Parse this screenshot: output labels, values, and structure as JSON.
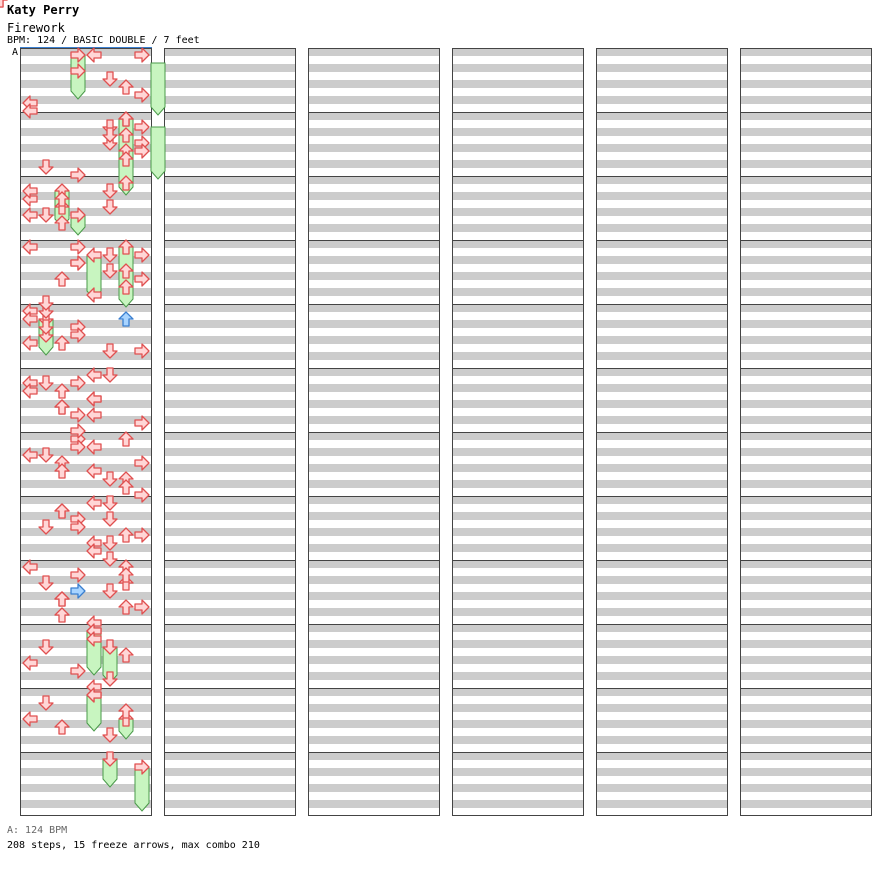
{
  "header": {
    "artist": "Katy Perry",
    "title": "Firework",
    "info": "BPM: 124 / BASIC DOUBLE / 7 feet",
    "bpm_marker": "A"
  },
  "footer": {
    "bpm_legend": "A: 124 BPM",
    "summary": "208 steps, 15 freeze arrows, max combo 210"
  },
  "colors": {
    "stripe": "#cccccc",
    "panel_border": "#444444",
    "arrow_red_fill": "#ffd6d6",
    "arrow_red_stroke": "#e05050",
    "arrow_blue_fill": "#a8d4ff",
    "arrow_blue_stroke": "#3a7fd0",
    "freeze_fill": "#c8f5c0",
    "freeze_stroke": "#4a9a4a"
  },
  "chart_data": {
    "type": "step-chart",
    "style": "BASIC DOUBLE",
    "bpm": 124,
    "columns": 6,
    "measures_per_column": 12,
    "lanes": 8,
    "lane_directions": [
      "left",
      "down",
      "up",
      "right",
      "left",
      "down",
      "up",
      "right"
    ],
    "total_steps": 208,
    "freeze_arrows": 15,
    "max_combo": 210,
    "arrows": [
      [
        5,
        2,
        0
      ],
      [
        0,
        0,
        4
      ],
      [
        1,
        2,
        7
      ],
      [
        1,
        4,
        6
      ],
      [
        1,
        6,
        5
      ],
      [
        1,
        8,
        6
      ],
      [
        2,
        2,
        5
      ],
      [
        2,
        4,
        0
      ],
      [
        2,
        6,
        2
      ],
      [
        2,
        8,
        1
      ],
      [
        2,
        10,
        2
      ],
      [
        3,
        0,
        0
      ],
      [
        3,
        2,
        5
      ],
      [
        3,
        4,
        3
      ],
      [
        3,
        6,
        5
      ],
      [
        3,
        8,
        7
      ],
      [
        4,
        0,
        1
      ],
      [
        4,
        2,
        6
      ],
      [
        4,
        4,
        3
      ],
      [
        4,
        6,
        1
      ],
      [
        4,
        8,
        2
      ],
      [
        4,
        10,
        7
      ],
      [
        5,
        0,
        5
      ],
      [
        5,
        2,
        3
      ],
      [
        5,
        4,
        0
      ],
      [
        5,
        6,
        4
      ],
      [
        5,
        8,
        2
      ],
      [
        5,
        10,
        3
      ],
      [
        6,
        0,
        3
      ],
      [
        6,
        2,
        4
      ],
      [
        6,
        4,
        0
      ],
      [
        6,
        6,
        2
      ],
      [
        6,
        8,
        4
      ],
      [
        6,
        10,
        6
      ],
      [
        7,
        0,
        5
      ],
      [
        7,
        2,
        2
      ],
      [
        7,
        4,
        3
      ],
      [
        7,
        6,
        1
      ],
      [
        7,
        8,
        7
      ],
      [
        7,
        10,
        4
      ],
      [
        8,
        0,
        6
      ],
      [
        8,
        2,
        3
      ],
      [
        8,
        4,
        6
      ],
      [
        8,
        6,
        5
      ],
      [
        8,
        8,
        2
      ],
      [
        8,
        10,
        7
      ],
      [
        0,
        0,
        7
      ],
      [
        0,
        4,
        3
      ],
      [
        0,
        6,
        5
      ],
      [
        0,
        8,
        6
      ],
      [
        0,
        10,
        7
      ],
      [
        0,
        12,
        0
      ],
      [
        0,
        14,
        0
      ],
      [
        1,
        0,
        6
      ],
      [
        1,
        2,
        5
      ],
      [
        1,
        4,
        5
      ],
      [
        1,
        6,
        7
      ],
      [
        1,
        8,
        7
      ],
      [
        1,
        10,
        6
      ],
      [
        1,
        12,
        1
      ],
      [
        1,
        14,
        3
      ],
      [
        2,
        0,
        6
      ],
      [
        2,
        2,
        0
      ],
      [
        2,
        4,
        2
      ],
      [
        2,
        6,
        5
      ],
      [
        2,
        8,
        0
      ],
      [
        3,
        0,
        3
      ],
      [
        3,
        2,
        7
      ],
      [
        3,
        4,
        3
      ],
      [
        3,
        6,
        6
      ],
      [
        3,
        8,
        2
      ],
      [
        3,
        10,
        6
      ],
      [
        3,
        12,
        4
      ],
      [
        3,
        14,
        1
      ],
      [
        4,
        0,
        0
      ],
      [
        4,
        2,
        0
      ],
      [
        4,
        4,
        1
      ],
      [
        4,
        6,
        3
      ],
      [
        4,
        8,
        0
      ],
      [
        4,
        10,
        5
      ],
      [
        5,
        0,
        4
      ],
      [
        5,
        2,
        1
      ],
      [
        5,
        4,
        2
      ],
      [
        5,
        6,
        4
      ],
      [
        5,
        8,
        2
      ],
      [
        5,
        10,
        4
      ],
      [
        5,
        12,
        7
      ],
      [
        5,
        14,
        3
      ],
      [
        6,
        0,
        6
      ],
      [
        6,
        2,
        3
      ],
      [
        6,
        4,
        1
      ],
      [
        6,
        6,
        7
      ],
      [
        6,
        8,
        2
      ],
      [
        6,
        10,
        5
      ],
      [
        6,
        12,
        6
      ],
      [
        6,
        14,
        7
      ],
      [
        7,
        0,
        4
      ],
      [
        7,
        2,
        2
      ],
      [
        7,
        4,
        5
      ],
      [
        7,
        6,
        3
      ],
      [
        7,
        8,
        6
      ],
      [
        7,
        10,
        5
      ],
      [
        7,
        12,
        4
      ],
      [
        7,
        14,
        5
      ],
      [
        8,
        0,
        0
      ],
      [
        8,
        2,
        6
      ],
      [
        8,
        4,
        1
      ],
      [
        8,
        6,
        3
      ],
      [
        8,
        8,
        2
      ],
      [
        8,
        10,
        6
      ],
      [
        8,
        12,
        2
      ],
      [
        8,
        14,
        4
      ],
      [
        9,
        0,
        4
      ],
      [
        9,
        2,
        4
      ],
      [
        9,
        4,
        1
      ],
      [
        9,
        6,
        6
      ],
      [
        9,
        8,
        0
      ],
      [
        9,
        10,
        3
      ],
      [
        9,
        12,
        5
      ],
      [
        9,
        14,
        4
      ],
      [
        10,
        0,
        4
      ],
      [
        10,
        2,
        1
      ],
      [
        10,
        4,
        6
      ],
      [
        10,
        6,
        0
      ],
      [
        10,
        8,
        2
      ],
      [
        10,
        10,
        5
      ]
    ],
    "freezes": [
      [
        0,
        0,
        3,
        0,
        10
      ],
      [
        0,
        2,
        8,
        0,
        14
      ],
      [
        1,
        0,
        6,
        2,
        2
      ],
      [
        1,
        2,
        8,
        1,
        14
      ],
      [
        2,
        2,
        2,
        2,
        10
      ],
      [
        2,
        8,
        3,
        2,
        12
      ],
      [
        3,
        0,
        6,
        3,
        14
      ],
      [
        3,
        2,
        4,
        3,
        12
      ],
      [
        4,
        2,
        1,
        4,
        10
      ],
      [
        9,
        0,
        4,
        9,
        10
      ],
      [
        9,
        4,
        5,
        9,
        12
      ],
      [
        10,
        0,
        4,
        10,
        8
      ],
      [
        10,
        6,
        6,
        10,
        10
      ],
      [
        11,
        0,
        5,
        11,
        6
      ],
      [
        11,
        2,
        7,
        11,
        12
      ]
    ]
  }
}
